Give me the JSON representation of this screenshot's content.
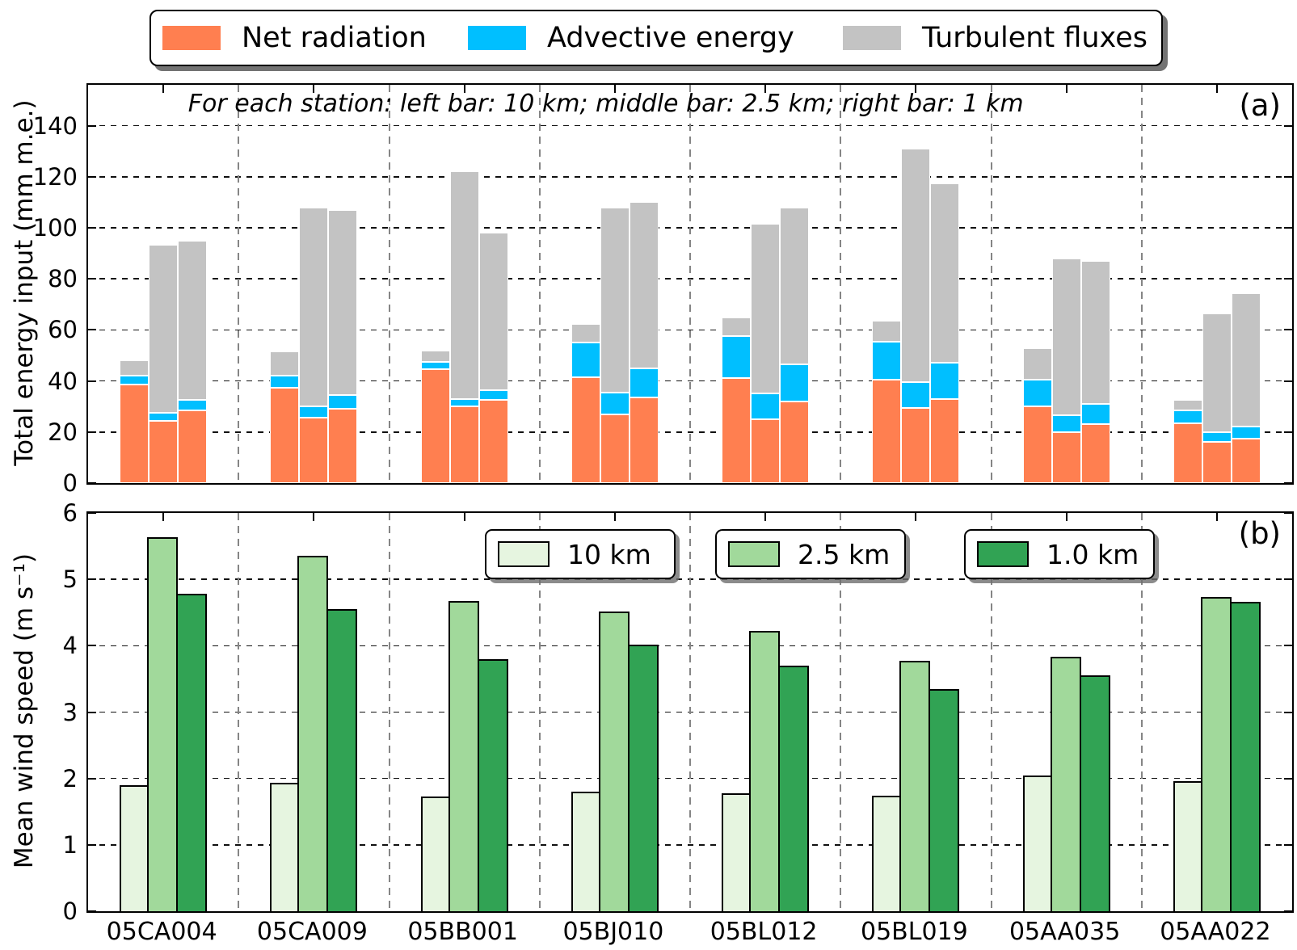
{
  "figure": {
    "background": "#ffffff"
  },
  "legend_top": {
    "items": [
      {
        "label": "Net radiation",
        "color": "#FF7F50"
      },
      {
        "label": "Advective energy",
        "color": "#00BFFF"
      },
      {
        "label": "Turbulent fluxes",
        "color": "#C3C3C3"
      }
    ]
  },
  "stations": [
    "05CA004",
    "05CA009",
    "05BB001",
    "05BJ010",
    "05BL012",
    "05BL019",
    "05AA035",
    "05AA022"
  ],
  "panel_a": {
    "label": "(a)",
    "title": "For each station: left bar: 10 km;  middle bar: 2.5 km;  right bar: 1 km",
    "ylabel": "Total energy input (mm m.e.)",
    "yticks": [
      0,
      20,
      40,
      60,
      80,
      100,
      120,
      140
    ],
    "ylim": [
      0,
      156
    ]
  },
  "panel_b": {
    "label": "(b)",
    "ylabel": "Mean wind speed (m s⁻¹)",
    "yticks": [
      0,
      1,
      2,
      3,
      4,
      5,
      6
    ],
    "ylim": [
      0,
      6
    ],
    "legend": [
      {
        "label": "10 km",
        "color": "#E6F5E0"
      },
      {
        "label": "2.5 km",
        "color": "#A1D99B"
      },
      {
        "label": "1.0 km",
        "color": "#31A354"
      }
    ]
  },
  "chart_data": [
    {
      "type": "bar",
      "stacked": true,
      "panel": "(a)",
      "title": "For each station: left bar: 10 km;  middle bar: 2.5 km;  right bar: 1 km",
      "ylabel": "Total energy input (mm m.e.)",
      "ylim": [
        0,
        156
      ],
      "grid": true,
      "categories": [
        "05CA004",
        "05CA009",
        "05BB001",
        "05BJ010",
        "05BL012",
        "05BL019",
        "05AA035",
        "05AA022"
      ],
      "bars_per_station": [
        "10 km",
        "2.5 km",
        "1 km"
      ],
      "series": [
        {
          "name": "Net radiation",
          "color": "#FF7F50",
          "values": [
            [
              38.5,
              24.5,
              28.5
            ],
            [
              37.5,
              25.5,
              29
            ],
            [
              44.5,
              30,
              32.5
            ],
            [
              41.5,
              27,
              33.5
            ],
            [
              41,
              25,
              32
            ],
            [
              40.5,
              29.5,
              33
            ],
            [
              30,
              20,
              23
            ],
            [
              23.5,
              16,
              17.5
            ]
          ]
        },
        {
          "name": "Advective energy",
          "color": "#00BFFF",
          "values": [
            [
              3.5,
              3,
              4
            ],
            [
              4.5,
              4.5,
              5.5
            ],
            [
              3,
              3,
              4
            ],
            [
              13.5,
              8.5,
              11.5
            ],
            [
              16.5,
              10,
              14.5
            ],
            [
              15,
              10,
              14
            ],
            [
              10.5,
              6.5,
              8
            ],
            [
              5,
              4,
              4.5
            ]
          ]
        },
        {
          "name": "Turbulent fluxes",
          "color": "#C3C3C3",
          "values": [
            [
              6,
              66,
              62.5
            ],
            [
              9.5,
              78,
              72.5
            ],
            [
              4.5,
              89,
              61.5
            ],
            [
              7.5,
              72.5,
              65
            ],
            [
              7.5,
              66.5,
              61.5
            ],
            [
              8,
              91.5,
              70.5
            ],
            [
              12.5,
              61.5,
              56
            ],
            [
              4,
              46.5,
              52.5
            ]
          ]
        }
      ]
    },
    {
      "type": "bar",
      "grouped": true,
      "panel": "(b)",
      "ylabel": "Mean wind speed (m s⁻¹)",
      "ylim": [
        0,
        6
      ],
      "grid": true,
      "categories": [
        "05CA004",
        "05CA009",
        "05BB001",
        "05BJ010",
        "05BL012",
        "05BL019",
        "05AA035",
        "05AA022"
      ],
      "series": [
        {
          "name": "10 km",
          "color": "#E6F5E0",
          "values": [
            1.9,
            1.93,
            1.73,
            1.8,
            1.78,
            1.74,
            2.04,
            1.96
          ]
        },
        {
          "name": "2.5 km",
          "color": "#A1D99B",
          "values": [
            5.63,
            5.35,
            4.67,
            4.51,
            4.22,
            3.77,
            3.83,
            4.74
          ]
        },
        {
          "name": "1.0 km",
          "color": "#31A354",
          "values": [
            4.78,
            4.55,
            3.8,
            4.02,
            3.7,
            3.35,
            3.56,
            4.66
          ]
        }
      ]
    }
  ]
}
